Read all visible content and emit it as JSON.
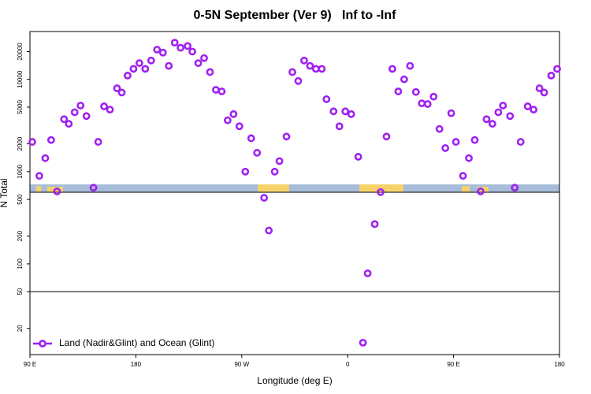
{
  "chart_data": {
    "type": "scatter",
    "title": "0-5N September (Ver 9)   Inf to -Inf",
    "x_label": "Longitude (deg E)",
    "y_label": "N Total",
    "log_y": true,
    "legend": "lower left",
    "reference_line": 50,
    "xlim": [
      90,
      540
    ],
    "xticks": [
      {
        "value": 90,
        "label": "90 E"
      },
      180,
      {
        "value": 270,
        "label": "90 W"
      },
      {
        "value": 360,
        "label": "0"
      },
      {
        "value": 450,
        "label": "90 E"
      },
      {
        "value": 540,
        "label": "180"
      }
    ],
    "ylim": [
      10.4,
      33000
    ],
    "yticks": [
      20,
      50,
      100,
      200,
      500,
      1000,
      2000,
      5000,
      10000,
      20000
    ],
    "x": [
      92,
      98,
      103,
      108,
      113,
      119,
      123,
      128,
      133,
      138,
      144,
      148,
      153,
      158,
      164,
      168,
      173,
      178,
      183,
      188,
      193,
      198,
      203,
      208,
      213,
      218,
      224,
      228,
      233,
      238,
      243,
      248,
      253,
      258,
      263,
      268,
      273,
      278,
      283,
      289,
      293,
      298,
      302,
      308,
      313,
      318,
      323,
      328,
      333,
      338,
      342,
      348,
      353,
      358,
      363,
      369,
      373,
      377,
      383,
      388,
      393,
      398,
      403,
      408,
      413,
      418,
      423,
      428,
      433,
      438,
      443,
      448,
      452,
      458,
      463,
      468,
      473,
      478,
      483,
      488,
      492,
      498,
      502,
      507,
      513,
      518,
      523,
      527,
      533,
      538
    ],
    "series": [
      {
        "name": "Land (Nadir&Glint) and Ocean (Glint)",
        "color": "#a020f0",
        "values": [
          2100,
          900,
          1400,
          2200,
          610,
          3700,
          3300,
          4400,
          5200,
          4000,
          670,
          2100,
          5100,
          4700,
          8000,
          7200,
          11000,
          13000,
          15000,
          13000,
          16000,
          21000,
          19500,
          14000,
          25000,
          22000,
          23000,
          20000,
          15000,
          17000,
          12000,
          7700,
          7400,
          3600,
          4200,
          3100,
          1000,
          2300,
          1600,
          520,
          230,
          1000,
          1300,
          2400,
          12000,
          9600,
          16000,
          14000,
          13000,
          13000,
          6100,
          4500,
          3100,
          4500,
          4200,
          1450,
          14,
          79,
          270,
          600,
          2400,
          13000,
          7400,
          10000,
          14000,
          7300,
          5500,
          5400,
          6500,
          2900,
          1800,
          4300,
          2100,
          900,
          1400,
          2200,
          610,
          3700,
          3300,
          4400,
          5200,
          4000,
          670,
          2100,
          5100,
          4700,
          8000,
          7200,
          11000,
          13000
        ]
      }
    ]
  }
}
